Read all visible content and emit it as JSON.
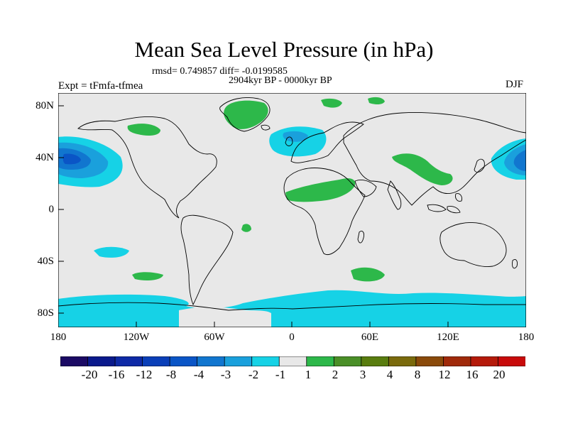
{
  "title": "Mean Sea Level Pressure (in hPa)",
  "stats": "rmsd= 0.749857 diff= -0.0199585",
  "period": "2904kyr BP - 0000kyr BP",
  "expt": "Expt = tFmfa-tfmea",
  "season": "DJF",
  "map": {
    "lat_ticks": [
      "80N",
      "40N",
      "0",
      "40S",
      "80S"
    ],
    "lon_ticks": [
      "180",
      "120W",
      "60W",
      "0",
      "60E",
      "120E",
      "180"
    ],
    "land_color": "#e8e8e8",
    "ocean_color": "#e8e8e8",
    "coast_color": "#000000"
  },
  "colorbar": {
    "labels": [
      "-20",
      "-16",
      "-12",
      "-8",
      "-4",
      "-3",
      "-2",
      "-1",
      "1",
      "2",
      "3",
      "4",
      "8",
      "12",
      "16",
      "20"
    ],
    "colors": [
      "#1b0a64",
      "#0a1a8c",
      "#0e2aa6",
      "#0a3fb8",
      "#0a55c6",
      "#1176cf",
      "#1aa0dc",
      "#16d2e6",
      "#e8e8e8",
      "#2db84a",
      "#4a8f27",
      "#597d0f",
      "#7a6a0c",
      "#8a4a0a",
      "#a02a0a",
      "#b51a0a",
      "#c80a0a"
    ]
  }
}
